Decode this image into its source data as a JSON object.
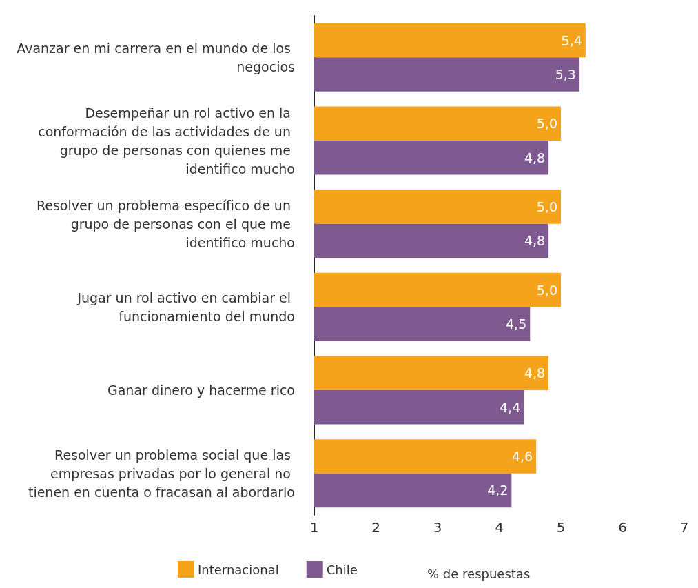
{
  "chart_data": {
    "type": "bar",
    "orientation": "horizontal",
    "xlabel": "% de respuestas",
    "categories": [
      "Avanzar en mi carrera en el mundo de los negocios",
      "Desempeñar un rol activo en la conformación de las actividades de un grupo de personas con quienes me identifico mucho",
      "Resolver un problema específico de un grupo de personas con el que me identifico mucho",
      "Jugar un rol activo en cambiar el funcionamiento del mundo",
      "Ganar dinero y hacerme rico",
      "Resolver un problema social que las empresas privadas por lo general no tienen en cuenta o fracasan al abordarlo"
    ],
    "series": [
      {
        "name": "Internacional",
        "color": "#f5a31a",
        "values": [
          5.4,
          5.0,
          5.0,
          5.0,
          4.8,
          4.6
        ],
        "value_labels": [
          "5,4",
          "5,0",
          "5,0",
          "5,0",
          "4,8",
          "4,6"
        ]
      },
      {
        "name": "Chile",
        "color": "#7f5a91",
        "values": [
          5.3,
          4.8,
          4.8,
          4.5,
          4.4,
          4.2
        ],
        "value_labels": [
          "5,3",
          "4,8",
          "4,8",
          "4,5",
          "4,4",
          "4,2"
        ]
      }
    ],
    "xlim": [
      1,
      7
    ],
    "xticks": [
      1,
      2,
      3,
      4,
      5,
      6,
      7
    ],
    "grid": false,
    "legend": "bottom"
  }
}
